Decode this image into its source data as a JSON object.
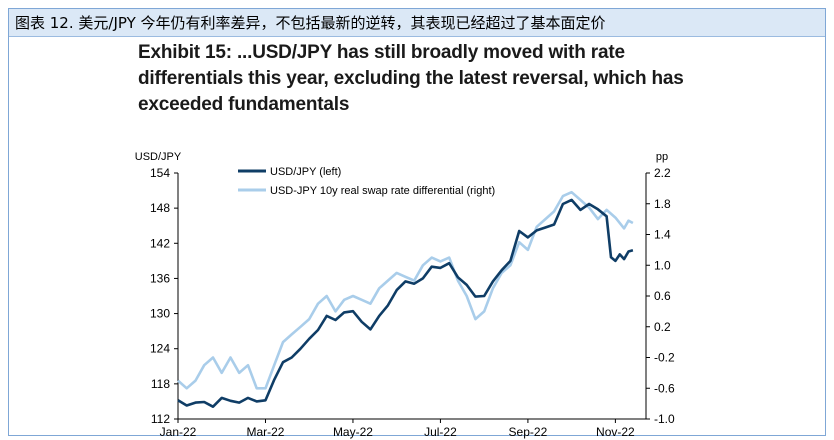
{
  "caption": "图表 12. 美元/JPY 今年仍有利率差异，不包括最新的逆转，其表现已经超过了基本面定价",
  "exhibit_title": "Exhibit 15: ...USD/JPY has still broadly moved with rate differentials this year, excluding the latest reversal, which has exceeded fundamentals",
  "colors": {
    "usdjpy": "#0f3d66",
    "differential": "#a9cdea",
    "frame": "#7fa7d6",
    "caption_bg": "#dbe8f6"
  },
  "chart_data": {
    "type": "line",
    "title": "Exhibit 15: ...USD/JPY has still broadly moved with rate differentials this year, excluding the latest reversal, which has exceeded fundamentals",
    "left_axis_label": "USD/JPY",
    "right_axis_label": "pp",
    "y_left_ticks": [
      "154",
      "148",
      "142",
      "136",
      "130",
      "124",
      "118",
      "112"
    ],
    "y_left_range": [
      112,
      154
    ],
    "y_right_ticks": [
      "2.2",
      "1.8",
      "1.4",
      "1.0",
      "0.6",
      "0.2",
      "-0.2",
      "-0.6",
      "-1.0"
    ],
    "y_right_range": [
      -1.0,
      2.2
    ],
    "x_tick_labels": [
      "Jan-22",
      "Mar-22",
      "May-22",
      "Jul-22",
      "Sep-22",
      "Nov-22"
    ],
    "x_tick_positions": [
      0,
      2,
      4,
      6,
      8,
      10
    ],
    "x_range": [
      0,
      10.7
    ],
    "series": [
      {
        "name": "USD/JPY (left)",
        "axis": "left",
        "x": [
          0,
          0.2,
          0.4,
          0.6,
          0.8,
          1.0,
          1.2,
          1.4,
          1.6,
          1.8,
          2.0,
          2.2,
          2.4,
          2.6,
          2.8,
          3.0,
          3.2,
          3.4,
          3.6,
          3.8,
          4.0,
          4.2,
          4.4,
          4.6,
          4.8,
          5.0,
          5.2,
          5.4,
          5.6,
          5.8,
          6.0,
          6.2,
          6.4,
          6.6,
          6.8,
          7.0,
          7.2,
          7.4,
          7.6,
          7.8,
          8.0,
          8.2,
          8.4,
          8.6,
          8.8,
          9.0,
          9.2,
          9.4,
          9.6,
          9.8,
          9.9,
          10.0,
          10.1,
          10.2,
          10.3,
          10.4
        ],
        "values": [
          115.2,
          114.3,
          114.8,
          114.9,
          114.1,
          115.6,
          115.1,
          114.8,
          115.6,
          115.0,
          115.2,
          118.7,
          121.7,
          122.5,
          124.0,
          125.7,
          127.2,
          129.6,
          128.9,
          130.2,
          130.4,
          128.6,
          127.3,
          129.6,
          131.4,
          134.0,
          135.5,
          135.1,
          136.0,
          138.0,
          137.8,
          138.6,
          136.2,
          134.9,
          132.9,
          133.0,
          135.5,
          137.4,
          139.0,
          144.1,
          143.0,
          144.2,
          144.7,
          145.2,
          148.7,
          149.4,
          147.7,
          148.7,
          147.8,
          146.6,
          139.6,
          139.0,
          140.1,
          139.3,
          140.6,
          140.8
        ]
      },
      {
        "name": "USD-JPY 10y real swap rate differential (right)",
        "axis": "right",
        "x": [
          0,
          0.2,
          0.4,
          0.6,
          0.8,
          1.0,
          1.2,
          1.4,
          1.6,
          1.8,
          2.0,
          2.2,
          2.4,
          2.6,
          2.8,
          3.0,
          3.2,
          3.4,
          3.6,
          3.8,
          4.0,
          4.2,
          4.4,
          4.6,
          4.8,
          5.0,
          5.2,
          5.4,
          5.6,
          5.8,
          6.0,
          6.2,
          6.4,
          6.6,
          6.8,
          7.0,
          7.2,
          7.4,
          7.6,
          7.8,
          8.0,
          8.2,
          8.4,
          8.6,
          8.8,
          9.0,
          9.2,
          9.4,
          9.6,
          9.8,
          10.0,
          10.2,
          10.3,
          10.4
        ],
        "values": [
          -0.5,
          -0.6,
          -0.5,
          -0.3,
          -0.2,
          -0.4,
          -0.2,
          -0.4,
          -0.3,
          -0.6,
          -0.6,
          -0.3,
          0.0,
          0.1,
          0.2,
          0.3,
          0.5,
          0.6,
          0.4,
          0.55,
          0.6,
          0.55,
          0.5,
          0.7,
          0.8,
          0.9,
          0.85,
          0.8,
          1.0,
          1.1,
          1.05,
          1.1,
          0.8,
          0.6,
          0.3,
          0.4,
          0.7,
          0.9,
          1.0,
          1.3,
          1.2,
          1.5,
          1.6,
          1.7,
          1.9,
          1.95,
          1.85,
          1.75,
          1.6,
          1.72,
          1.62,
          1.48,
          1.58,
          1.55
        ]
      }
    ],
    "legend_position": "top-left"
  }
}
